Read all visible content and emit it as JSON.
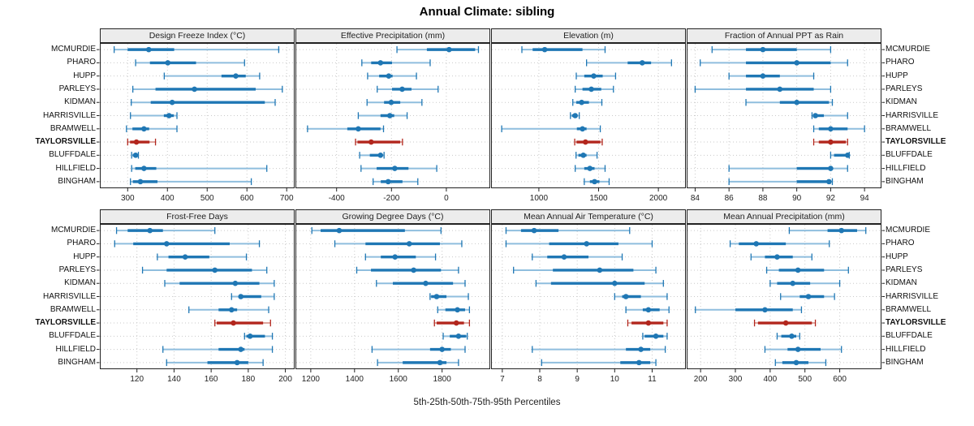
{
  "title": "Annual Climate: sibling",
  "footer": "5th-25th-50th-75th-95th Percentiles",
  "colors": {
    "blue": "#1F77B4",
    "blue_light": "#8FBEDE",
    "red": "#B2261D",
    "red_light": "#DFA59E",
    "grid": "#CACACA",
    "border": "#222222",
    "header_bg": "#ECECEC",
    "tick_text": "#222222"
  },
  "chart_data": {
    "type": "scatter",
    "variant": "dot-whisker-percentile-trellis",
    "title": "Annual Climate: sibling",
    "caption": "5th-25th-50th-75th-95th Percentiles",
    "percentile_labels": [
      "5th",
      "25th",
      "50th",
      "75th",
      "95th"
    ],
    "highlight_site": "TAYLORSVILLE",
    "sites": [
      "MCMURDIE",
      "PHARO",
      "HUPP",
      "PARLEYS",
      "KIDMAN",
      "HARRISVILLE",
      "BRAMWELL",
      "TAYLORSVILLE",
      "BLUFFDALE",
      "HILLFIELD",
      "BINGHAM"
    ],
    "panels": [
      {
        "title": "Design Freeze Index (°C)",
        "ticks": [
          300,
          400,
          500,
          600,
          700
        ],
        "domain": [
          230,
          720
        ],
        "values": [
          [
            266,
            300,
            353,
            417,
            680
          ],
          [
            320,
            356,
            401,
            472,
            594
          ],
          [
            392,
            536,
            572,
            597,
            632
          ],
          [
            313,
            370,
            468,
            622,
            689
          ],
          [
            309,
            358,
            412,
            645,
            671
          ],
          [
            307,
            391,
            404,
            416,
            424
          ],
          [
            297,
            312,
            341,
            354,
            424
          ],
          [
            300,
            306,
            322,
            355,
            370
          ],
          [
            310,
            313,
            320,
            324,
            327
          ],
          [
            310,
            319,
            341,
            372,
            650
          ],
          [
            307,
            313,
            332,
            375,
            611
          ]
        ]
      },
      {
        "title": "Effective Precipitation (mm)",
        "ticks": [
          -400,
          -200,
          0
        ],
        "domain": [
          -550,
          160
        ],
        "values": [
          [
            -180,
            -71,
            10,
            105,
            117
          ],
          [
            -308,
            -274,
            -240,
            -198,
            -59
          ],
          [
            -287,
            -245,
            -210,
            -196,
            -109
          ],
          [
            -252,
            -198,
            -161,
            -127,
            -30
          ],
          [
            -289,
            -227,
            -201,
            -168,
            -89
          ],
          [
            -321,
            -240,
            -206,
            -190,
            -143
          ],
          [
            -506,
            -361,
            -321,
            -240,
            -229
          ],
          [
            -331,
            -324,
            -274,
            -168,
            -160
          ],
          [
            -316,
            -279,
            -240,
            -232,
            -227
          ],
          [
            -311,
            -254,
            -188,
            -138,
            -35
          ],
          [
            -267,
            -239,
            -212,
            -160,
            -104
          ]
        ]
      },
      {
        "title": "Elevation (m)",
        "ticks": [
          1000,
          1500,
          2000
        ],
        "domain": [
          600,
          2230
        ],
        "values": [
          [
            858,
            948,
            1049,
            1365,
            1554
          ],
          [
            1399,
            1743,
            1865,
            1939,
            2110
          ],
          [
            1313,
            1380,
            1459,
            1534,
            1642
          ],
          [
            1304,
            1365,
            1439,
            1522,
            1624
          ],
          [
            1284,
            1313,
            1358,
            1419,
            1527
          ],
          [
            1264,
            1277,
            1304,
            1318,
            1338
          ],
          [
            689,
            1318,
            1365,
            1399,
            1514
          ],
          [
            1300,
            1315,
            1390,
            1515,
            1530
          ],
          [
            1311,
            1331,
            1372,
            1399,
            1487
          ],
          [
            1304,
            1380,
            1427,
            1466,
            1554
          ],
          [
            1380,
            1427,
            1466,
            1507,
            1588
          ]
        ]
      },
      {
        "title": "Fraction of Annual PPT as Rain",
        "ticks": [
          84,
          86,
          88,
          90,
          92,
          94
        ],
        "domain": [
          83.5,
          95
        ],
        "values": [
          [
            85.0,
            87.0,
            88.0,
            90.0,
            92.0
          ],
          [
            84.3,
            87.0,
            90.0,
            92.0,
            93.0
          ],
          [
            86.0,
            87.0,
            88.0,
            89.0,
            91.0
          ],
          [
            84.0,
            87.0,
            89.0,
            91.0,
            92.0
          ],
          [
            87.0,
            89.0,
            90.0,
            91.9,
            92.1
          ],
          [
            90.9,
            91.0,
            91.1,
            91.6,
            93.0
          ],
          [
            91.0,
            91.3,
            92.0,
            93.0,
            94.0
          ],
          [
            91.0,
            91.3,
            92.0,
            92.9,
            93.0
          ],
          [
            92.0,
            92.2,
            93.0,
            93.05,
            93.1
          ],
          [
            86.0,
            90.0,
            92.0,
            92.05,
            93.0
          ],
          [
            86.0,
            90.0,
            91.9,
            92.0,
            92.1
          ]
        ]
      },
      {
        "title": "Frost-Free Days",
        "ticks": [
          120,
          140,
          160,
          180,
          200
        ],
        "domain": [
          100,
          205
        ],
        "values": [
          [
            109,
            115,
            127,
            134,
            162
          ],
          [
            108,
            118,
            136,
            170,
            186
          ],
          [
            131,
            137,
            146,
            159,
            179
          ],
          [
            123,
            136,
            162,
            182,
            190
          ],
          [
            135,
            143,
            173,
            186,
            194
          ],
          [
            171,
            175,
            176,
            187,
            194
          ],
          [
            148,
            164,
            171,
            174,
            191
          ],
          [
            162,
            163,
            172,
            188,
            192
          ],
          [
            178,
            179,
            181,
            189,
            193
          ],
          [
            134,
            164,
            176,
            178,
            193
          ],
          [
            136,
            158,
            174,
            180,
            188
          ]
        ]
      },
      {
        "title": "Growing Degree Days (°C)",
        "ticks": [
          1200,
          1400,
          1600,
          1800
        ],
        "domain": [
          1130,
          2020
        ],
        "values": [
          [
            1205,
            1245,
            1330,
            1630,
            1795
          ],
          [
            1310,
            1450,
            1650,
            1790,
            1890
          ],
          [
            1450,
            1520,
            1585,
            1680,
            1770
          ],
          [
            1410,
            1475,
            1670,
            1795,
            1875
          ],
          [
            1500,
            1575,
            1725,
            1850,
            1905
          ],
          [
            1745,
            1750,
            1775,
            1820,
            1920
          ],
          [
            1780,
            1815,
            1870,
            1905,
            1925
          ],
          [
            1765,
            1775,
            1865,
            1900,
            1925
          ],
          [
            1805,
            1835,
            1875,
            1910,
            1915
          ],
          [
            1480,
            1745,
            1800,
            1840,
            1905
          ],
          [
            1505,
            1620,
            1790,
            1820,
            1875
          ]
        ]
      },
      {
        "title": "Mean Annual Air Temperature (°C)",
        "ticks": [
          7,
          8,
          9,
          10,
          11
        ],
        "domain": [
          6.7,
          11.9
        ],
        "values": [
          [
            7.1,
            7.5,
            7.85,
            8.5,
            10.4
          ],
          [
            7.1,
            8.25,
            9.25,
            10.1,
            11.0
          ],
          [
            7.8,
            8.2,
            8.65,
            9.3,
            10.2
          ],
          [
            7.3,
            8.35,
            9.6,
            10.5,
            11.1
          ],
          [
            7.9,
            8.3,
            10.0,
            10.8,
            11.3
          ],
          [
            10.0,
            10.2,
            10.3,
            10.7,
            11.4
          ],
          [
            10.3,
            10.75,
            10.9,
            11.2,
            11.45
          ],
          [
            10.35,
            10.45,
            10.9,
            11.3,
            11.4
          ],
          [
            10.75,
            10.8,
            11.1,
            11.3,
            11.4
          ],
          [
            7.8,
            10.3,
            10.7,
            10.95,
            11.35
          ],
          [
            8.05,
            10.15,
            10.65,
            10.95,
            11.1
          ]
        ]
      },
      {
        "title": "Mean Annual Precipitation (mm)",
        "ticks": [
          200,
          300,
          400,
          500,
          600
        ],
        "domain": [
          160,
          720
        ],
        "values": [
          [
            455,
            565,
            605,
            650,
            675
          ],
          [
            285,
            310,
            360,
            445,
            570
          ],
          [
            345,
            385,
            420,
            465,
            520
          ],
          [
            390,
            425,
            480,
            555,
            625
          ],
          [
            400,
            420,
            465,
            515,
            600
          ],
          [
            430,
            485,
            510,
            555,
            585
          ],
          [
            185,
            300,
            385,
            465,
            490
          ],
          [
            355,
            365,
            445,
            520,
            530
          ],
          [
            420,
            432,
            462,
            475,
            485
          ],
          [
            385,
            450,
            480,
            545,
            605
          ],
          [
            415,
            435,
            475,
            510,
            560
          ]
        ]
      }
    ]
  }
}
